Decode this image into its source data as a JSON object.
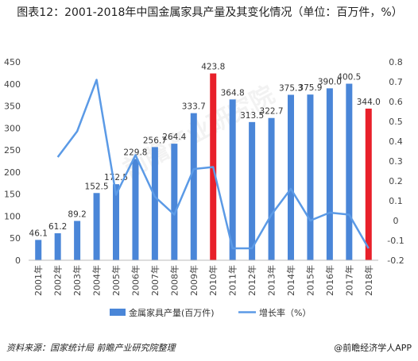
{
  "title": "图表12：2001-2018年中国金属家具产量及其变化情况（单位：百万件，%）",
  "source": "资料来源：国家统计局 前瞻产业研究院整理",
  "brand": "@前瞻经济学人APP",
  "watermark": "前瞻产业研究院",
  "colors": {
    "bar": "#4a86d8",
    "bar_highlight": "#e8202a",
    "line": "#5b9ae6",
    "axis_text": "#444444",
    "grid": "#e6e6e6"
  },
  "chart_data": {
    "type": "bar+line",
    "categories": [
      "2001年",
      "2002年",
      "2003年",
      "2004年",
      "2005年",
      "2006年",
      "2007年",
      "2008年",
      "2009年",
      "2010年",
      "2011年",
      "2012年",
      "2013年",
      "2014年",
      "2015年",
      "2016年",
      "2017年",
      "2018年"
    ],
    "series": [
      {
        "name": "金属家具产量(百万件)",
        "type": "bar",
        "axis": "left",
        "values": [
          46.1,
          61.2,
          89.2,
          152.5,
          172.5,
          229.8,
          256.7,
          264.4,
          333.7,
          423.8,
          364.8,
          313.5,
          322.7,
          375.3,
          375.9,
          390.0,
          400.5,
          344.0
        ],
        "labels": [
          "46.1",
          "61.2",
          "89.2",
          "152.5",
          "172.5",
          "229.8",
          "256.7",
          "264.4",
          "333.7",
          "423.8",
          "364.8",
          "313.5",
          "322.7",
          "375.3",
          "375.9",
          "390.0",
          "400.5",
          "344.0"
        ],
        "highlight_indices": [
          9,
          17
        ]
      },
      {
        "name": "增长率（%）",
        "type": "line",
        "axis": "right",
        "values": [
          null,
          0.32,
          0.45,
          0.71,
          0.13,
          0.33,
          0.12,
          0.03,
          0.26,
          0.27,
          -0.14,
          -0.14,
          0.03,
          0.16,
          0.0,
          0.04,
          0.03,
          -0.14
        ]
      }
    ],
    "left_axis": {
      "min": 0,
      "max": 450,
      "ticks": [
        "0",
        "50",
        "100",
        "150",
        "200",
        "250",
        "300",
        "350",
        "400",
        "450"
      ]
    },
    "right_axis": {
      "min": -0.2,
      "max": 0.8,
      "ticks": [
        "-0.2",
        "-0.1",
        "0",
        "0.1",
        "0.2",
        "0.3",
        "0.4",
        "0.5",
        "0.6",
        "0.7",
        "0.8"
      ]
    },
    "grid": false,
    "legend_position": "bottom"
  }
}
